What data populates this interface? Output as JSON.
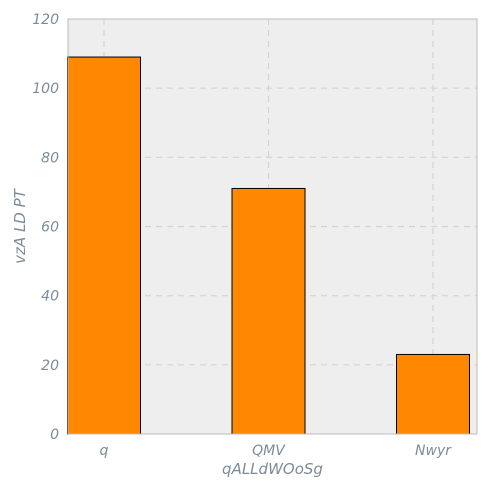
{
  "chart_data": {
    "type": "bar",
    "title": "",
    "xlabel": "qALLdWOoSg",
    "ylabel": "vzA LD PT",
    "categories": [
      "q",
      "QMV",
      "Nwyr"
    ],
    "values": [
      109,
      71,
      23
    ],
    "ylim": [
      0,
      120
    ],
    "yticks": [
      0,
      20,
      40,
      60,
      80,
      100,
      120
    ],
    "grid": true,
    "bar_color": "#ff8800",
    "bar_edge_color": "#000000",
    "plot_background": "#eeeeee"
  }
}
